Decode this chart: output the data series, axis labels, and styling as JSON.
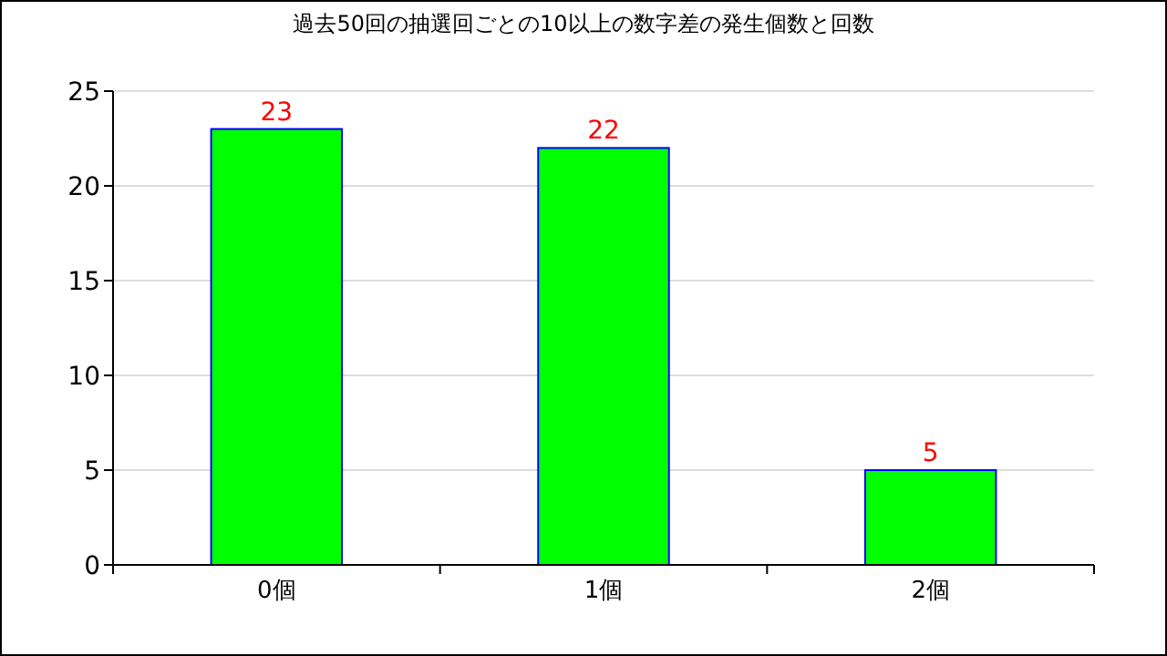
{
  "chart_data": {
    "type": "bar",
    "title": "過去50回の抽選回ごとの10以上の数字差の発生個数と回数",
    "categories": [
      "0個",
      "1個",
      "2個"
    ],
    "values": [
      23,
      22,
      5
    ],
    "color": "#00ff00",
    "ylim": [
      0,
      25
    ],
    "yticks": [
      0,
      5,
      10,
      15,
      20,
      25
    ],
    "grid": "y",
    "data_labels": true
  }
}
